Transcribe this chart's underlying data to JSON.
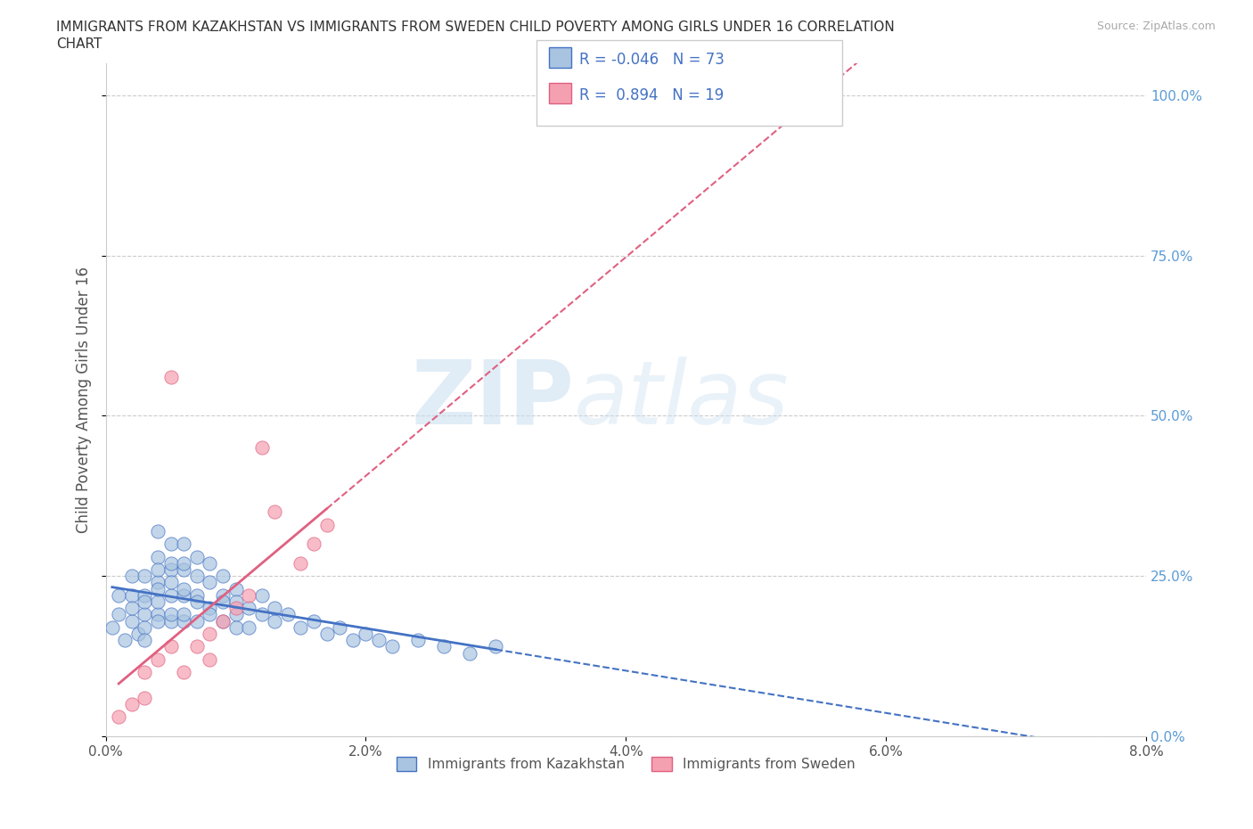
{
  "title_line1": "IMMIGRANTS FROM KAZAKHSTAN VS IMMIGRANTS FROM SWEDEN CHILD POVERTY AMONG GIRLS UNDER 16 CORRELATION",
  "title_line2": "CHART",
  "source": "Source: ZipAtlas.com",
  "ylabel": "Child Poverty Among Girls Under 16",
  "xlim": [
    0.0,
    0.08
  ],
  "ylim": [
    0.0,
    1.05
  ],
  "xticks": [
    0.0,
    0.02,
    0.04,
    0.06,
    0.08
  ],
  "xticklabels": [
    "0.0%",
    "2.0%",
    "4.0%",
    "6.0%",
    "8.0%"
  ],
  "yticks": [
    0.0,
    0.25,
    0.5,
    0.75,
    1.0
  ],
  "yticklabels": [
    "0.0%",
    "25.0%",
    "50.0%",
    "75.0%",
    "100.0%"
  ],
  "grid_color": "#cccccc",
  "background_color": "#ffffff",
  "watermark_zip": "ZIP",
  "watermark_atlas": "atlas",
  "R_kaz": -0.046,
  "N_kaz": 73,
  "R_swe": 0.894,
  "N_swe": 19,
  "color_kaz": "#a8c4e0",
  "color_swe": "#f4a0b0",
  "line_color_kaz": "#4472c4",
  "line_color_swe": "#e06080",
  "legend_kaz": "Immigrants from Kazakhstan",
  "legend_swe": "Immigrants from Sweden",
  "kaz_x": [
    0.0005,
    0.001,
    0.001,
    0.0015,
    0.002,
    0.002,
    0.002,
    0.002,
    0.0025,
    0.003,
    0.003,
    0.003,
    0.003,
    0.003,
    0.003,
    0.004,
    0.004,
    0.004,
    0.004,
    0.004,
    0.004,
    0.004,
    0.004,
    0.005,
    0.005,
    0.005,
    0.005,
    0.005,
    0.005,
    0.005,
    0.006,
    0.006,
    0.006,
    0.006,
    0.006,
    0.006,
    0.006,
    0.007,
    0.007,
    0.007,
    0.007,
    0.007,
    0.008,
    0.008,
    0.008,
    0.008,
    0.009,
    0.009,
    0.009,
    0.009,
    0.01,
    0.01,
    0.01,
    0.01,
    0.011,
    0.011,
    0.012,
    0.012,
    0.013,
    0.013,
    0.014,
    0.015,
    0.016,
    0.017,
    0.018,
    0.019,
    0.02,
    0.021,
    0.022,
    0.024,
    0.026,
    0.028,
    0.03
  ],
  "kaz_y": [
    0.17,
    0.19,
    0.22,
    0.15,
    0.22,
    0.25,
    0.18,
    0.2,
    0.16,
    0.19,
    0.22,
    0.25,
    0.17,
    0.21,
    0.15,
    0.28,
    0.32,
    0.24,
    0.19,
    0.21,
    0.26,
    0.18,
    0.23,
    0.26,
    0.22,
    0.18,
    0.3,
    0.24,
    0.19,
    0.27,
    0.22,
    0.26,
    0.18,
    0.3,
    0.23,
    0.19,
    0.27,
    0.22,
    0.25,
    0.18,
    0.21,
    0.28,
    0.24,
    0.2,
    0.27,
    0.19,
    0.22,
    0.18,
    0.25,
    0.21,
    0.19,
    0.23,
    0.17,
    0.21,
    0.2,
    0.17,
    0.19,
    0.22,
    0.18,
    0.2,
    0.19,
    0.17,
    0.18,
    0.16,
    0.17,
    0.15,
    0.16,
    0.15,
    0.14,
    0.15,
    0.14,
    0.13,
    0.14
  ],
  "swe_x": [
    0.001,
    0.002,
    0.003,
    0.003,
    0.004,
    0.005,
    0.005,
    0.006,
    0.007,
    0.008,
    0.008,
    0.009,
    0.01,
    0.011,
    0.012,
    0.013,
    0.015,
    0.016,
    0.017
  ],
  "swe_y": [
    0.03,
    0.05,
    0.06,
    0.1,
    0.12,
    0.56,
    0.14,
    0.1,
    0.14,
    0.16,
    0.12,
    0.18,
    0.2,
    0.22,
    0.45,
    0.35,
    0.27,
    0.3,
    0.33
  ]
}
